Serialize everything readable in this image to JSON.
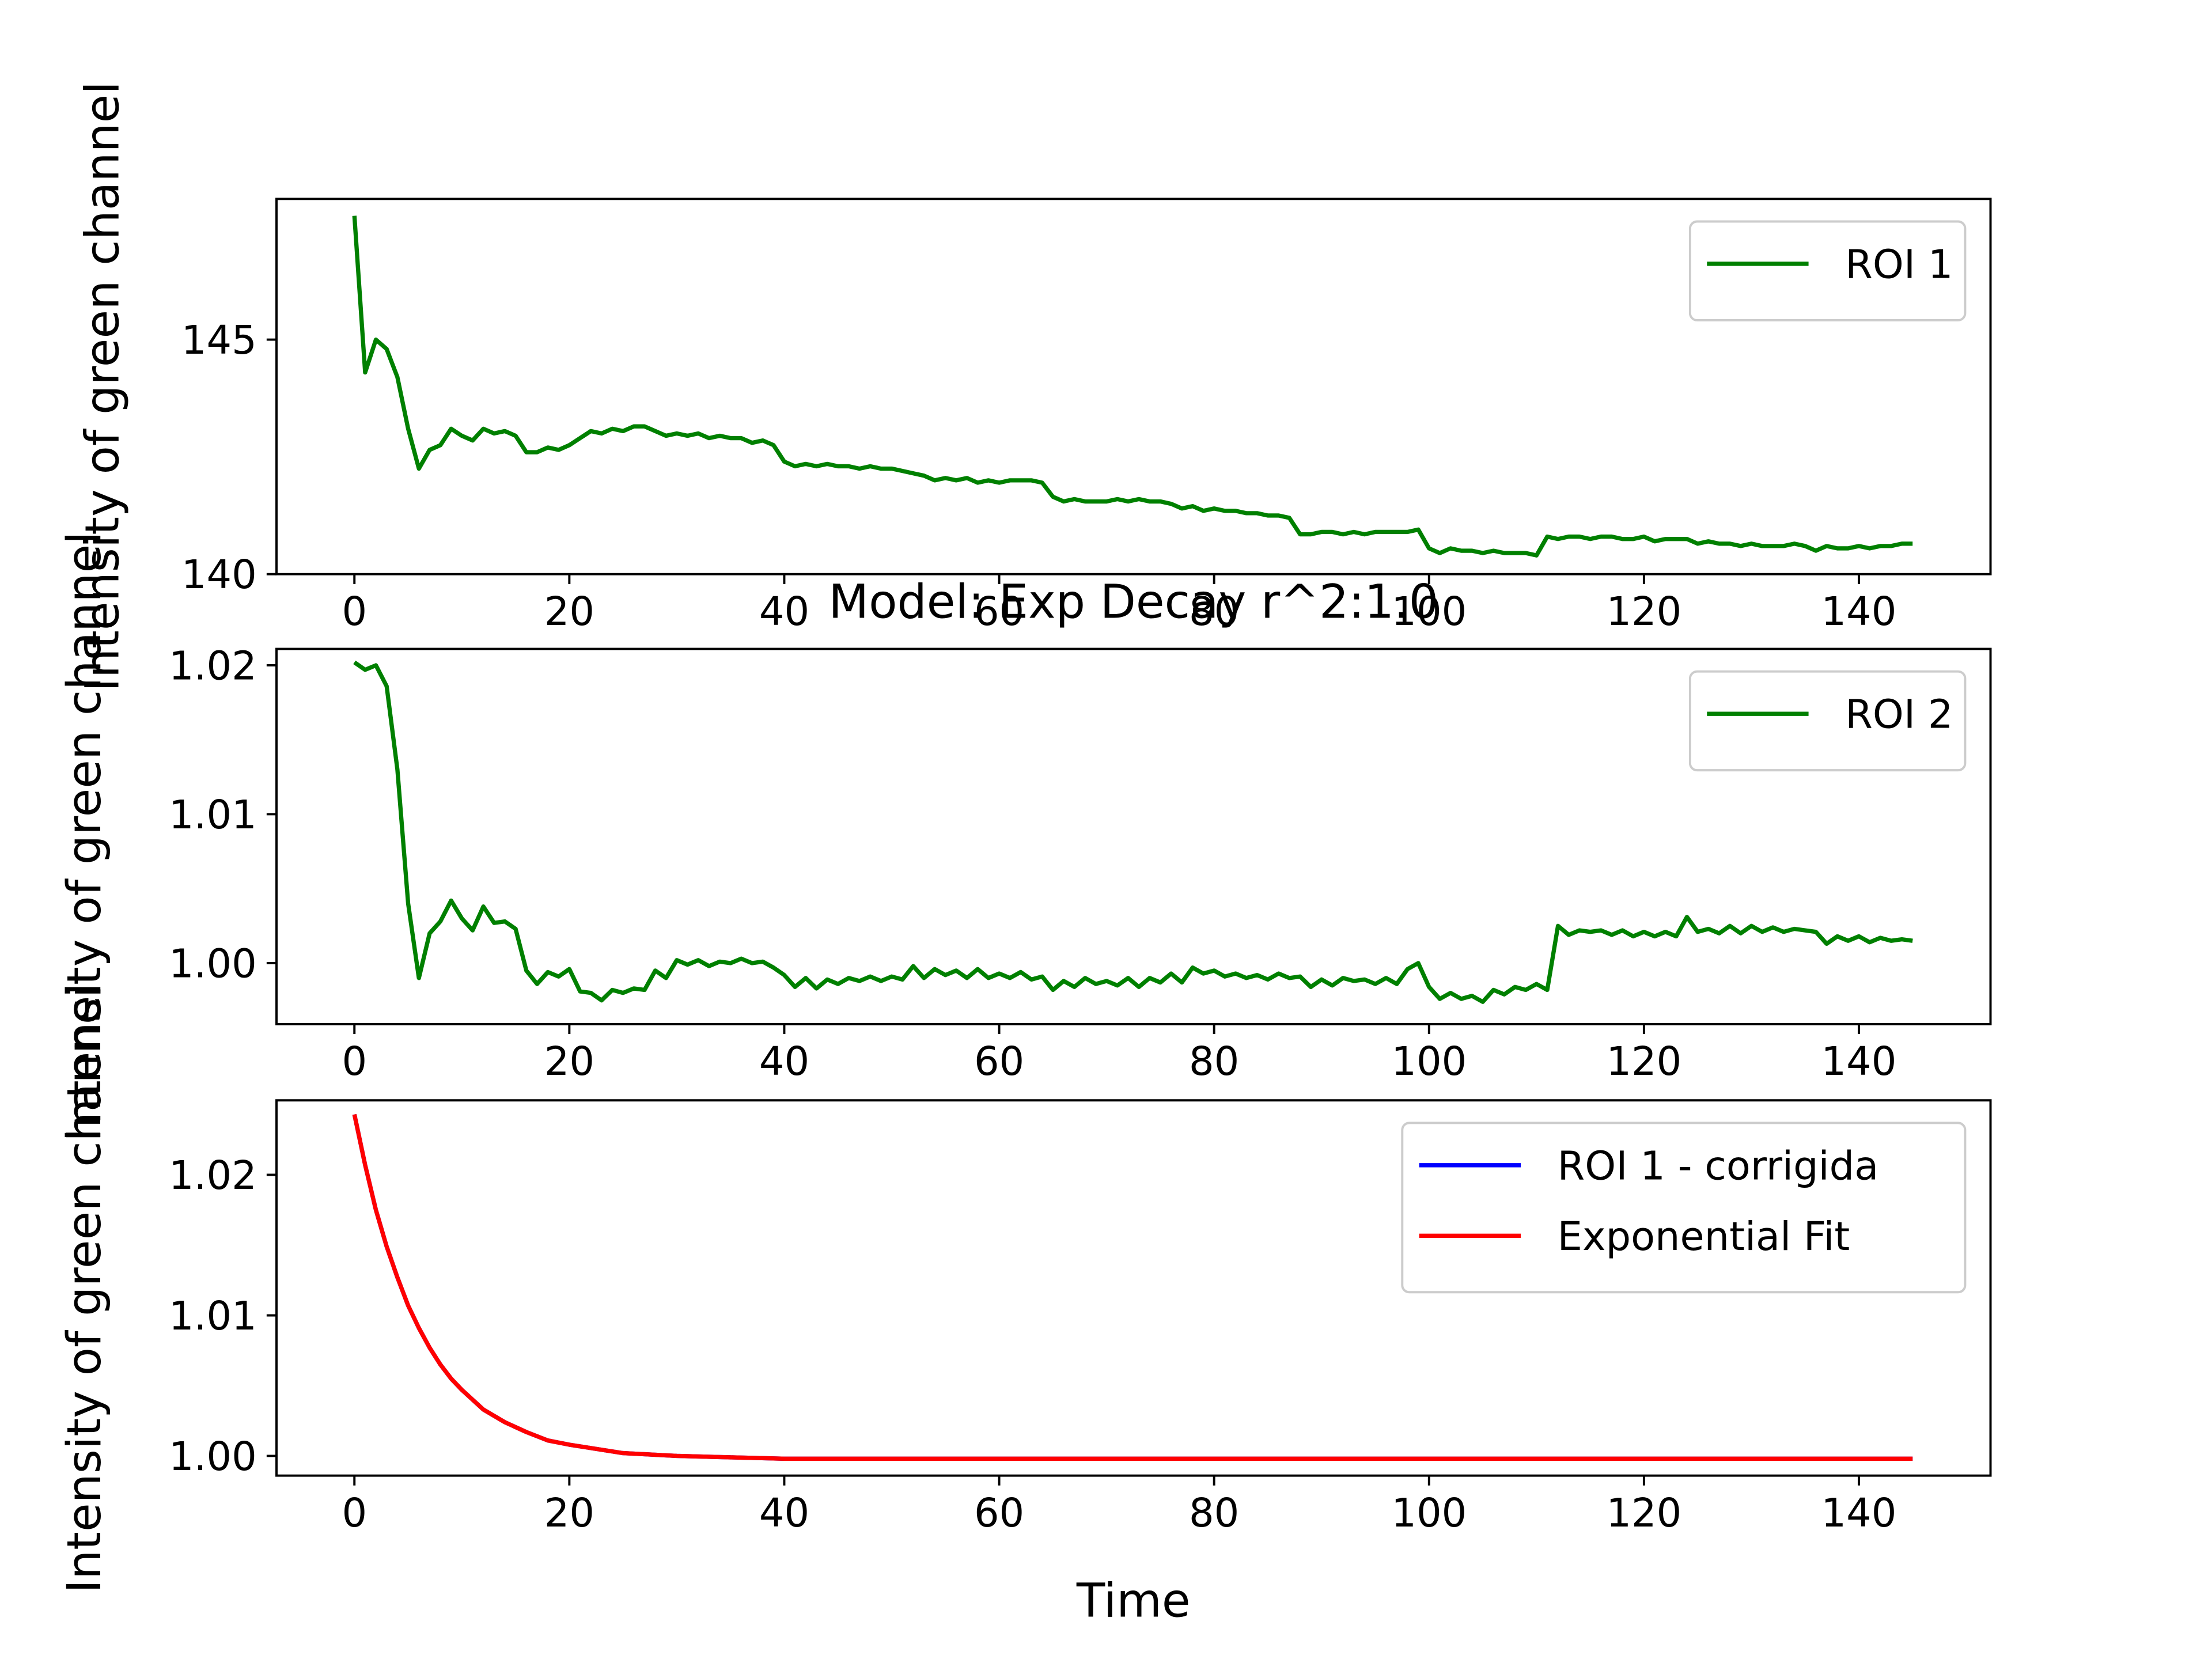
{
  "chart_data": [
    {
      "type": "line",
      "ylabel": "Intensity of green channel",
      "legend": "upper right",
      "xlim": [
        -7.25,
        152.25
      ],
      "xticks": [
        0,
        20,
        40,
        60,
        80,
        100,
        120,
        140
      ],
      "ylim": [
        140,
        148
      ],
      "yticks": [
        140,
        145
      ],
      "series": [
        {
          "name": "ROI 1",
          "color": "#008000",
          "x": [
            0,
            1,
            2,
            3,
            4,
            5,
            6,
            7,
            8,
            9,
            10,
            11,
            12,
            13,
            14,
            15,
            16,
            17,
            18,
            19,
            20,
            21,
            22,
            23,
            24,
            25,
            26,
            27,
            28,
            29,
            30,
            31,
            32,
            33,
            34,
            35,
            36,
            37,
            38,
            39,
            40,
            41,
            42,
            43,
            44,
            45,
            46,
            47,
            48,
            49,
            50,
            51,
            52,
            53,
            54,
            55,
            56,
            57,
            58,
            59,
            60,
            61,
            62,
            63,
            64,
            65,
            66,
            67,
            68,
            69,
            70,
            71,
            72,
            73,
            74,
            75,
            76,
            77,
            78,
            79,
            80,
            81,
            82,
            83,
            84,
            85,
            86,
            87,
            88,
            89,
            90,
            91,
            92,
            93,
            94,
            95,
            96,
            97,
            98,
            99,
            100,
            101,
            102,
            103,
            104,
            105,
            106,
            107,
            108,
            109,
            110,
            111,
            112,
            113,
            114,
            115,
            116,
            117,
            118,
            119,
            120,
            121,
            122,
            123,
            124,
            125,
            126,
            127,
            128,
            129,
            130,
            131,
            132,
            133,
            134,
            135,
            136,
            137,
            138,
            139,
            140,
            141,
            142,
            143,
            144,
            145
          ],
          "values": [
            147.64,
            144.3,
            145.0,
            144.8,
            144.2,
            143.1,
            142.25,
            142.65,
            142.75,
            143.1,
            142.95,
            142.85,
            143.1,
            143.0,
            143.05,
            142.95,
            142.6,
            142.6,
            142.7,
            142.65,
            142.75,
            142.9,
            143.05,
            143.0,
            143.1,
            143.05,
            143.15,
            143.15,
            143.05,
            142.95,
            143.0,
            142.95,
            143.0,
            142.9,
            142.95,
            142.9,
            142.9,
            142.8,
            142.85,
            142.75,
            142.4,
            142.3,
            142.35,
            142.3,
            142.35,
            142.3,
            142.3,
            142.25,
            142.3,
            142.25,
            142.25,
            142.2,
            142.15,
            142.1,
            142.0,
            142.05,
            142.0,
            142.05,
            141.95,
            142.0,
            141.95,
            142.0,
            142.0,
            142.0,
            141.95,
            141.65,
            141.55,
            141.6,
            141.55,
            141.55,
            141.55,
            141.6,
            141.55,
            141.6,
            141.55,
            141.55,
            141.5,
            141.4,
            141.45,
            141.35,
            141.4,
            141.35,
            141.35,
            141.3,
            141.3,
            141.25,
            141.25,
            141.2,
            140.85,
            140.85,
            140.9,
            140.9,
            140.85,
            140.9,
            140.85,
            140.9,
            140.9,
            140.9,
            140.9,
            140.95,
            140.55,
            140.45,
            140.55,
            140.5,
            140.5,
            140.45,
            140.5,
            140.45,
            140.45,
            140.45,
            140.4,
            140.8,
            140.75,
            140.8,
            140.8,
            140.75,
            140.8,
            140.8,
            140.75,
            140.75,
            140.8,
            140.7,
            140.75,
            140.75,
            140.75,
            140.65,
            140.7,
            140.65,
            140.65,
            140.6,
            140.65,
            140.6,
            140.6,
            140.6,
            140.65,
            140.6,
            140.5,
            140.6,
            140.55,
            140.55,
            140.6,
            140.55,
            140.6,
            140.6,
            140.65,
            140.65
          ]
        }
      ]
    },
    {
      "type": "line",
      "title": "Model: Exp Decay r^2:1.0",
      "ylabel": "Intensity of green channel",
      "legend": "upper right",
      "xlim": [
        -7.25,
        152.25
      ],
      "xticks": [
        0,
        20,
        40,
        60,
        80,
        100,
        120,
        140
      ],
      "ylim": [
        0.9959,
        1.0211
      ],
      "yticks": [
        {
          "value": 1.0,
          "label": "1.00"
        },
        {
          "value": 1.01,
          "label": "1.01"
        },
        {
          "value": 1.02,
          "label": "1.02"
        }
      ],
      "series": [
        {
          "name": "ROI 2",
          "color": "#008000",
          "x": [
            0,
            1,
            2,
            3,
            4,
            5,
            6,
            7,
            8,
            9,
            10,
            11,
            12,
            13,
            14,
            15,
            16,
            17,
            18,
            19,
            20,
            21,
            22,
            23,
            24,
            25,
            26,
            27,
            28,
            29,
            30,
            31,
            32,
            33,
            34,
            35,
            36,
            37,
            38,
            39,
            40,
            41,
            42,
            43,
            44,
            45,
            46,
            47,
            48,
            49,
            50,
            51,
            52,
            53,
            54,
            55,
            56,
            57,
            58,
            59,
            60,
            61,
            62,
            63,
            64,
            65,
            66,
            67,
            68,
            69,
            70,
            71,
            72,
            73,
            74,
            75,
            76,
            77,
            78,
            79,
            80,
            81,
            82,
            83,
            84,
            85,
            86,
            87,
            88,
            89,
            90,
            91,
            92,
            93,
            94,
            95,
            96,
            97,
            98,
            99,
            100,
            101,
            102,
            103,
            104,
            105,
            106,
            107,
            108,
            109,
            110,
            111,
            112,
            113,
            114,
            115,
            116,
            117,
            118,
            119,
            120,
            121,
            122,
            123,
            124,
            125,
            126,
            127,
            128,
            129,
            130,
            131,
            132,
            133,
            134,
            135,
            136,
            137,
            138,
            139,
            140,
            141,
            142,
            143,
            144,
            145
          ],
          "values": [
            1.0202,
            1.0197,
            1.02,
            1.0186,
            1.013,
            1.004,
            0.999,
            1.002,
            1.0028,
            1.0042,
            1.003,
            1.0022,
            1.0038,
            1.0027,
            1.0028,
            1.0023,
            0.9995,
            0.9986,
            0.9994,
            0.9991,
            0.9996,
            0.9981,
            0.998,
            0.9975,
            0.9982,
            0.998,
            0.9983,
            0.9982,
            0.9995,
            0.999,
            1.0002,
            0.9999,
            1.0002,
            0.9998,
            1.0001,
            1.0,
            1.0003,
            1.0,
            1.0001,
            0.9997,
            0.9992,
            0.9984,
            0.999,
            0.9983,
            0.9989,
            0.9986,
            0.999,
            0.9988,
            0.9991,
            0.9988,
            0.9991,
            0.9989,
            0.9998,
            0.999,
            0.9996,
            0.9992,
            0.9995,
            0.999,
            0.9996,
            0.999,
            0.9993,
            0.999,
            0.9994,
            0.9989,
            0.9991,
            0.9982,
            0.9988,
            0.9984,
            0.999,
            0.9986,
            0.9988,
            0.9985,
            0.999,
            0.9984,
            0.999,
            0.9987,
            0.9993,
            0.9987,
            0.9997,
            0.9993,
            0.9995,
            0.9991,
            0.9993,
            0.999,
            0.9992,
            0.9989,
            0.9993,
            0.999,
            0.9991,
            0.9984,
            0.9989,
            0.9985,
            0.999,
            0.9988,
            0.9989,
            0.9986,
            0.999,
            0.9986,
            0.9996,
            1.0,
            0.9984,
            0.9976,
            0.998,
            0.9976,
            0.9978,
            0.9974,
            0.9982,
            0.9979,
            0.9984,
            0.9982,
            0.9986,
            0.9982,
            1.0025,
            1.0019,
            1.0022,
            1.0021,
            1.0022,
            1.0019,
            1.0022,
            1.0018,
            1.0021,
            1.0018,
            1.0021,
            1.0018,
            1.0031,
            1.0021,
            1.0023,
            1.002,
            1.0025,
            1.002,
            1.0025,
            1.0021,
            1.0024,
            1.0021,
            1.0023,
            1.0022,
            1.0021,
            1.0013,
            1.0018,
            1.0015,
            1.0018,
            1.0014,
            1.0017,
            1.0015,
            1.0016,
            1.0015
          ]
        }
      ]
    },
    {
      "type": "line",
      "ylabel": "Intensity of green channel",
      "xlabel": "Time",
      "legend": "upper right",
      "xlim": [
        -7.25,
        152.25
      ],
      "xticks": [
        0,
        20,
        40,
        60,
        80,
        100,
        120,
        140
      ],
      "ylim": [
        0.9986,
        1.0253
      ],
      "yticks": [
        {
          "value": 1.0,
          "label": "1.00"
        },
        {
          "value": 1.01,
          "label": "1.01"
        },
        {
          "value": 1.02,
          "label": "1.02"
        }
      ],
      "series": [
        {
          "name": "ROI 1 - corrigida",
          "color": "#0000ff",
          "x": [
            0,
            1,
            2,
            3,
            4,
            5,
            6,
            7,
            8,
            9,
            10,
            12,
            14,
            16,
            18,
            20,
            25,
            30,
            35,
            40,
            50,
            60,
            70,
            80,
            90,
            100,
            110,
            120,
            130,
            140,
            145
          ],
          "values": [
            1.0243,
            1.0207,
            1.0175,
            1.0149,
            1.0127,
            1.0107,
            1.0091,
            1.0077,
            1.0065,
            1.0055,
            1.0047,
            1.0033,
            1.0024,
            1.0017,
            1.0011,
            1.0008,
            1.0002,
            1.0,
            0.9999,
            0.9998,
            0.9998,
            0.9998,
            0.9998,
            0.9998,
            0.9998,
            0.9998,
            0.9998,
            0.9998,
            0.9998,
            0.9998,
            0.9998
          ]
        },
        {
          "name": "Exponential Fit",
          "color": "#ff0000",
          "x": [
            0,
            1,
            2,
            3,
            4,
            5,
            6,
            7,
            8,
            9,
            10,
            12,
            14,
            16,
            18,
            20,
            25,
            30,
            35,
            40,
            50,
            60,
            70,
            80,
            90,
            100,
            110,
            120,
            130,
            140,
            145
          ],
          "values": [
            1.0243,
            1.0207,
            1.0175,
            1.0149,
            1.0127,
            1.0107,
            1.0091,
            1.0077,
            1.0065,
            1.0055,
            1.0047,
            1.0033,
            1.0024,
            1.0017,
            1.0011,
            1.0008,
            1.0002,
            1.0,
            0.9999,
            0.9998,
            0.9998,
            0.9998,
            0.9998,
            0.9998,
            0.9998,
            0.9998,
            0.9998,
            0.9998,
            0.9998,
            0.9998,
            0.9998
          ]
        }
      ]
    }
  ]
}
